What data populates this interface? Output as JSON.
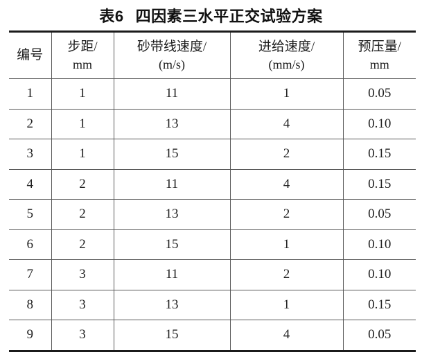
{
  "title": {
    "tag": "表6",
    "text": "四因素三水平正交试验方案"
  },
  "table": {
    "columns": [
      {
        "name": "编号",
        "unit": ""
      },
      {
        "name": "步距/",
        "unit": "mm"
      },
      {
        "name": "砂带线速度/",
        "unit": "(m/s)"
      },
      {
        "name": "进给速度/",
        "unit": "(mm/s)"
      },
      {
        "name": "预压量/",
        "unit": "mm"
      }
    ],
    "rows": [
      [
        "1",
        "1",
        "11",
        "1",
        "0.05"
      ],
      [
        "2",
        "1",
        "13",
        "4",
        "0.10"
      ],
      [
        "3",
        "1",
        "15",
        "2",
        "0.15"
      ],
      [
        "4",
        "2",
        "11",
        "4",
        "0.15"
      ],
      [
        "5",
        "2",
        "13",
        "2",
        "0.05"
      ],
      [
        "6",
        "2",
        "15",
        "1",
        "0.10"
      ],
      [
        "7",
        "3",
        "11",
        "2",
        "0.10"
      ],
      [
        "8",
        "3",
        "13",
        "1",
        "0.15"
      ],
      [
        "9",
        "3",
        "15",
        "4",
        "0.05"
      ]
    ]
  }
}
